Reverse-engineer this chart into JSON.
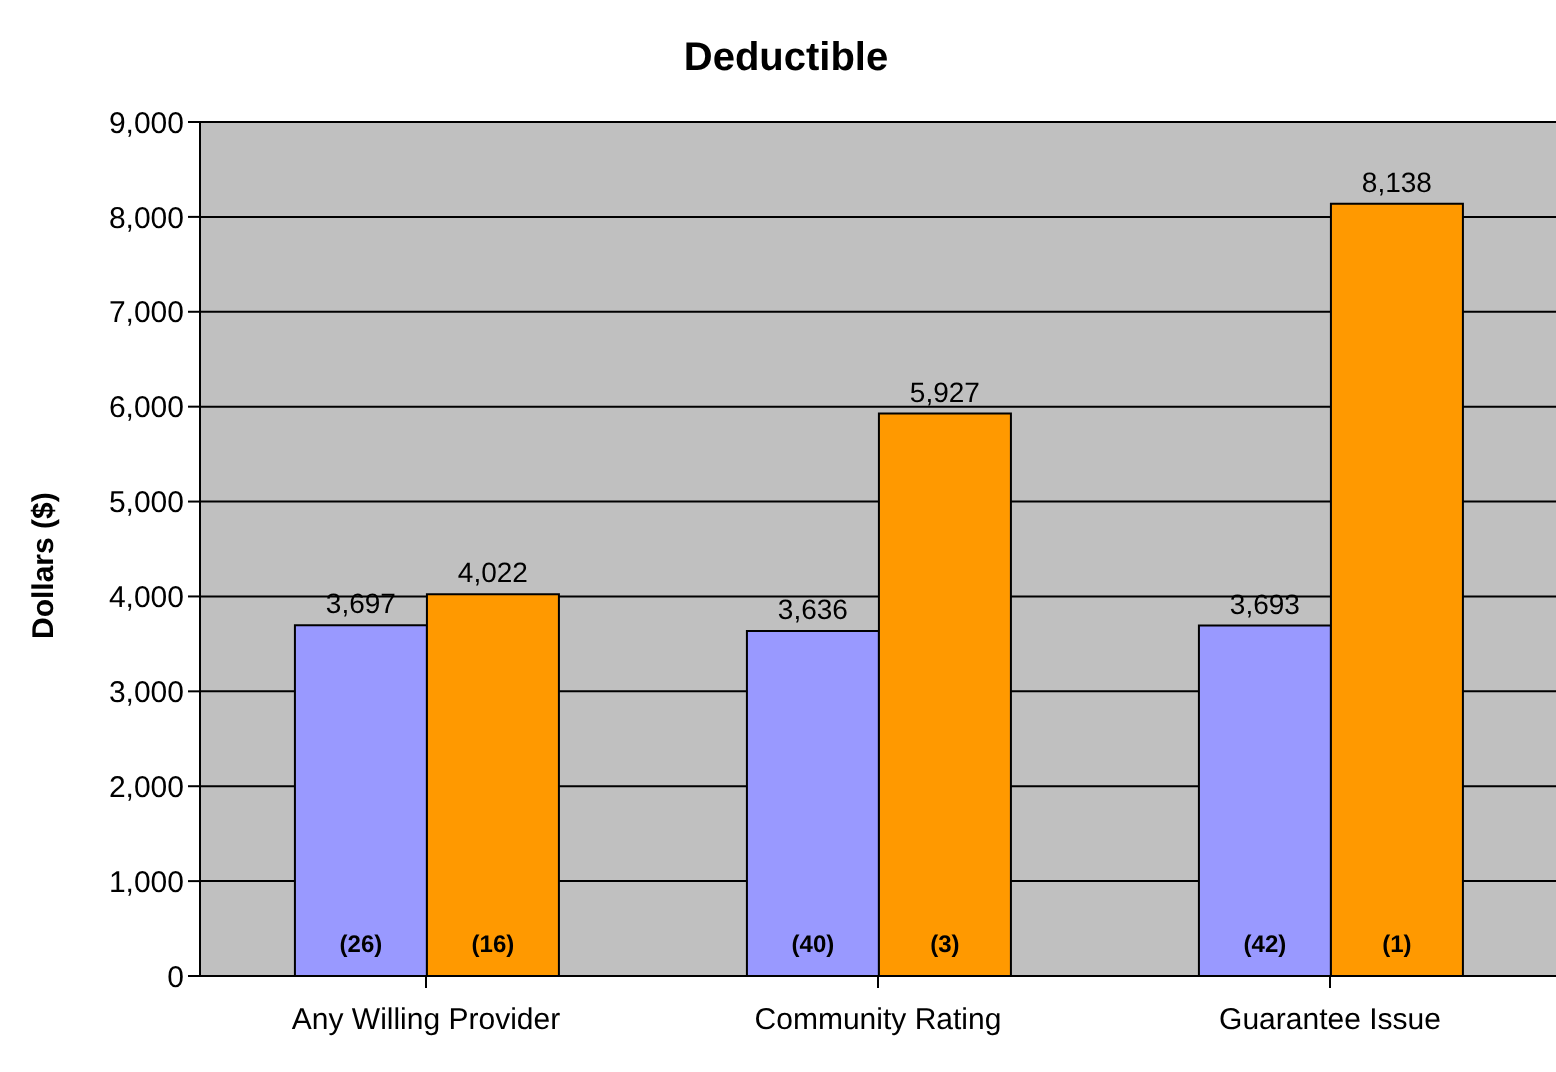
{
  "chart_data": {
    "type": "bar",
    "title": "Deductible",
    "ylabel": "Dollars ($)",
    "categories": [
      "Any Willing Provider",
      "Community Rating",
      "Guarantee Issue"
    ],
    "series": [
      {
        "color": "#9999ff",
        "values": [
          3697,
          3636,
          3693
        ],
        "value_labels": [
          "3,697",
          "3,636",
          "3,693"
        ]
      },
      {
        "color": "#ff9900",
        "values": [
          4022,
          5927,
          8138
        ],
        "value_labels": [
          "4,022",
          "5,927",
          "8,138"
        ]
      }
    ],
    "annotations": [
      {
        "text": "(26)",
        "x": "Any Willing Provider",
        "y": 0
      },
      {
        "text": "(16)",
        "x": "Any Willing Provider",
        "y": 0
      },
      {
        "text": "(40)",
        "x": "Community Rating",
        "y": 0
      },
      {
        "text": "(3)",
        "x": "Community Rating",
        "y": 0
      },
      {
        "text": "(42)",
        "x": "Guarantee Issue",
        "y": 0
      },
      {
        "text": "(1)",
        "x": "Guarantee Issue",
        "y": 0
      }
    ],
    "ylim": [
      0,
      9000
    ],
    "yticks": [
      0,
      {
        "value": 1000,
        "label": "1,000"
      },
      {
        "value": 2000,
        "label": "2,000"
      },
      {
        "value": 3000,
        "label": "3,000"
      },
      {
        "value": 4000,
        "label": "4,000"
      },
      {
        "value": 5000,
        "label": "5,000"
      },
      {
        "value": 6000,
        "label": "6,000"
      },
      {
        "value": 7000,
        "label": "7,000"
      },
      {
        "value": 8000,
        "label": "8,000"
      },
      {
        "value": 9000,
        "label": "9,000"
      }
    ],
    "grid": "y",
    "legend": false
  }
}
